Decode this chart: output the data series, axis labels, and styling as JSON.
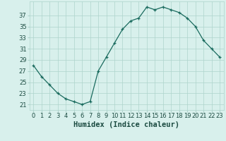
{
  "x": [
    0,
    1,
    2,
    3,
    4,
    5,
    6,
    7,
    8,
    9,
    10,
    11,
    12,
    13,
    14,
    15,
    16,
    17,
    18,
    19,
    20,
    21,
    22,
    23
  ],
  "y": [
    28,
    26,
    24.5,
    23,
    22,
    21.5,
    21,
    21.5,
    27,
    29.5,
    32,
    34.5,
    36,
    36.5,
    38.5,
    38,
    38.5,
    38,
    37.5,
    36.5,
    35,
    32.5,
    31,
    29.5
  ],
  "line_color": "#1a6b5e",
  "marker_color": "#1a6b5e",
  "bg_color": "#d8f0ec",
  "grid_color": "#aed4cc",
  "xlabel": "Humidex (Indice chaleur)",
  "yticks": [
    21,
    23,
    25,
    27,
    29,
    31,
    33,
    35,
    37
  ],
  "xticks": [
    0,
    1,
    2,
    3,
    4,
    5,
    6,
    7,
    8,
    9,
    10,
    11,
    12,
    13,
    14,
    15,
    16,
    17,
    18,
    19,
    20,
    21,
    22,
    23
  ],
  "ylim": [
    20.0,
    39.5
  ],
  "xlim": [
    -0.5,
    23.5
  ],
  "font_color": "#1a4a40",
  "xlabel_fontsize": 7.5,
  "tick_fontsize": 6.0
}
